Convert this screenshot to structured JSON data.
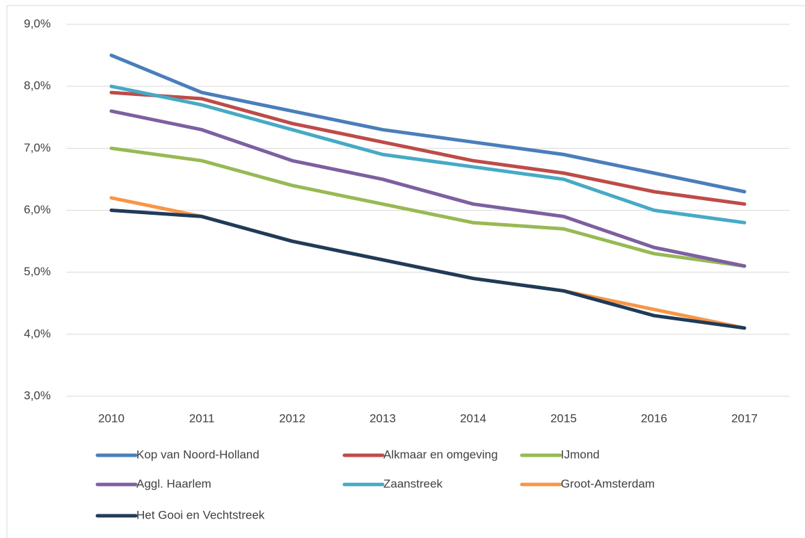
{
  "chart_data": {
    "type": "line",
    "categories": [
      "2010",
      "2011",
      "2012",
      "2013",
      "2014",
      "2015",
      "2016",
      "2017"
    ],
    "series": [
      {
        "name": "Kop van Noord-Holland",
        "color": "#4a7ebb",
        "values": [
          8.5,
          7.9,
          7.6,
          7.3,
          7.1,
          6.9,
          6.6,
          6.3
        ]
      },
      {
        "name": "Alkmaar en omgeving",
        "color": "#be4b48",
        "values": [
          7.9,
          7.8,
          7.4,
          7.1,
          6.8,
          6.6,
          6.3,
          6.1
        ]
      },
      {
        "name": "IJmond",
        "color": "#98b954",
        "values": [
          7.0,
          6.8,
          6.4,
          6.1,
          5.8,
          5.7,
          5.3,
          5.1
        ]
      },
      {
        "name": "Aggl. Haarlem",
        "color": "#7d60a0",
        "values": [
          7.6,
          7.3,
          6.8,
          6.5,
          6.1,
          5.9,
          5.4,
          5.1
        ]
      },
      {
        "name": "Zaanstreek",
        "color": "#46aac5",
        "values": [
          8.0,
          7.7,
          7.3,
          6.9,
          6.7,
          6.5,
          6.0,
          5.8
        ]
      },
      {
        "name": "Groot-Amsterdam",
        "color": "#f79646",
        "values": [
          6.2,
          5.9,
          5.5,
          5.2,
          4.9,
          4.7,
          4.4,
          4.1
        ]
      },
      {
        "name": "Het Gooi en Vechtstreek",
        "color": "#1f3b5a",
        "values": [
          6.0,
          5.9,
          5.5,
          5.2,
          4.9,
          4.7,
          4.3,
          4.1
        ]
      }
    ],
    "ylim": [
      3,
      9
    ],
    "yticks": [
      {
        "value": 3,
        "label": "3,0%"
      },
      {
        "value": 4,
        "label": "4,0%"
      },
      {
        "value": 5,
        "label": "5,0%"
      },
      {
        "value": 6,
        "label": "6,0%"
      },
      {
        "value": 7,
        "label": "7,0%"
      },
      {
        "value": 8,
        "label": "8,0%"
      },
      {
        "value": 9,
        "label": "9,0%"
      }
    ],
    "grid": true,
    "legend": "bottom"
  }
}
